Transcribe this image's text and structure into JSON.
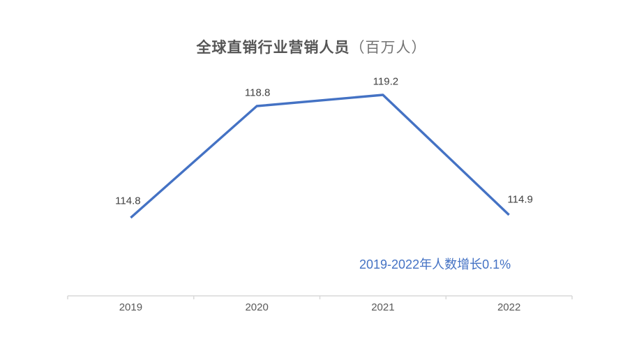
{
  "title": {
    "main": "全球直销行业营销人员",
    "unit": "（百万人）"
  },
  "annotation": "2019-2022年人数增长0.1%",
  "colors": {
    "line": "#4472C4",
    "axis": "#D9D9D9",
    "title": "#595959",
    "data_label": "#404040",
    "axis_label": "#595959",
    "annotation": "#4472C4",
    "background": "#FFFFFF"
  },
  "chart_data": {
    "type": "line",
    "title": "全球直销行业营销人员（百万人）",
    "categories": [
      "2019",
      "2020",
      "2021",
      "2022"
    ],
    "values": [
      114.8,
      118.8,
      119.2,
      114.9
    ],
    "data_labels": [
      "114.8",
      "118.8",
      "119.2",
      "114.9"
    ],
    "xlabel": "",
    "ylabel": "",
    "ylim": [
      112,
      120
    ],
    "grid": false,
    "legend": "none",
    "annotations": [
      "2019-2022年人数增长0.1%"
    ]
  }
}
